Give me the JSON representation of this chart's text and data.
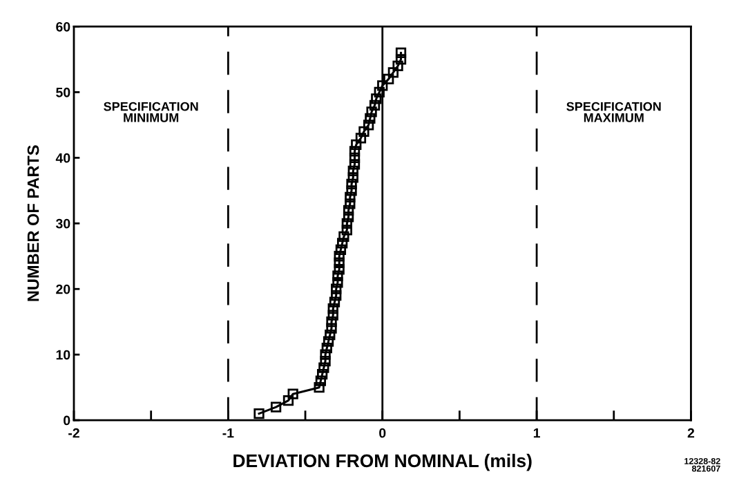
{
  "chart_data": {
    "type": "line",
    "xlabel": "DEVIATION FROM NOMINAL (mils)",
    "ylabel": "NUMBER OF PARTS",
    "x": [
      -0.8,
      -0.69,
      -0.61,
      -0.58,
      -0.41,
      -0.4,
      -0.39,
      -0.38,
      -0.37,
      -0.37,
      -0.36,
      -0.35,
      -0.34,
      -0.33,
      -0.33,
      -0.32,
      -0.32,
      -0.31,
      -0.3,
      -0.3,
      -0.29,
      -0.29,
      -0.28,
      -0.28,
      -0.28,
      -0.27,
      -0.26,
      -0.25,
      -0.23,
      -0.23,
      -0.22,
      -0.22,
      -0.21,
      -0.21,
      -0.2,
      -0.2,
      -0.19,
      -0.19,
      -0.18,
      -0.18,
      -0.18,
      -0.17,
      -0.14,
      -0.12,
      -0.09,
      -0.08,
      -0.07,
      -0.05,
      -0.04,
      -0.02,
      0.0,
      0.04,
      0.07,
      0.1,
      0.12,
      0.12
    ],
    "series": [
      {
        "color": "#000000",
        "values": [
          1,
          2,
          3,
          4,
          5,
          6,
          7,
          8,
          9,
          10,
          11,
          12,
          13,
          14,
          15,
          16,
          17,
          18,
          19,
          20,
          21,
          22,
          23,
          24,
          25,
          26,
          27,
          28,
          29,
          30,
          31,
          32,
          33,
          34,
          35,
          36,
          37,
          38,
          39,
          40,
          41,
          42,
          43,
          44,
          45,
          46,
          47,
          48,
          49,
          50,
          51,
          52,
          53,
          54,
          55,
          56
        ]
      }
    ],
    "marker": "square",
    "line_style": "solid",
    "grid": false,
    "legend": false,
    "xlim": [
      -2,
      2
    ],
    "ylim": [
      0,
      60
    ],
    "xticks": [
      {
        "value": -2,
        "label": "-2"
      },
      {
        "value": -1.5,
        "label": null
      },
      {
        "value": -1,
        "label": "-1"
      },
      {
        "value": -0.5,
        "label": null
      },
      0,
      {
        "value": 0.5,
        "label": null
      },
      1,
      {
        "value": 1.5,
        "label": null
      },
      2
    ],
    "yticks": [
      0,
      10,
      20,
      30,
      40,
      50,
      60
    ],
    "ref_lines": [
      {
        "axis": "x",
        "value": -1,
        "label": "SPECIFICATION\nMINIMUM",
        "line_style": "dashed",
        "color": "#000000"
      },
      {
        "axis": "x",
        "value": 0,
        "line_style": "solid",
        "color": "#000000"
      },
      {
        "axis": "x",
        "value": 1,
        "label": "SPECIFICATION\nMAXIMUM",
        "line_style": "dashed",
        "color": "#000000"
      }
    ],
    "annotations": [
      "12328-82\n821607"
    ]
  }
}
